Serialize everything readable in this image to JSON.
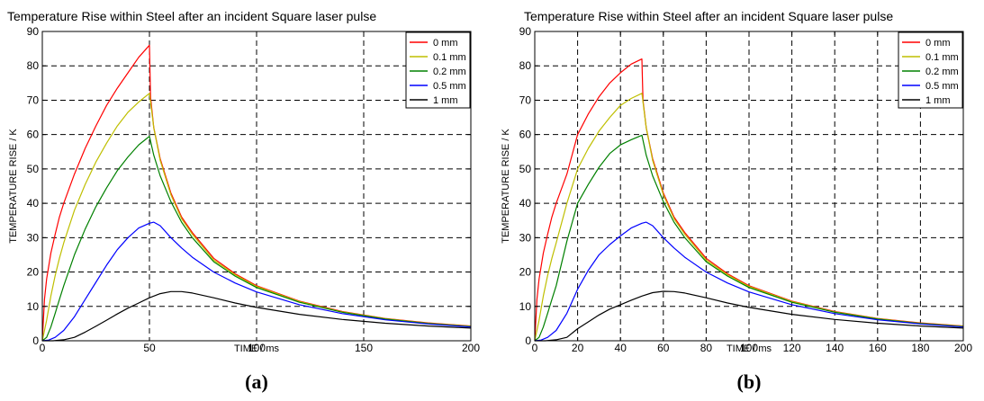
{
  "chart_data": [
    {
      "type": "line",
      "panel_label": "(a)",
      "title": "Temperature Rise within Steel after an incident Square  laser pulse",
      "xlabel": "TIME / ms",
      "ylabel": "TEMPERATURE RISE / K",
      "xlim": [
        0,
        200
      ],
      "ylim": [
        0,
        90
      ],
      "xticks": [
        0,
        50,
        100,
        150,
        200
      ],
      "yticks": [
        0,
        10,
        20,
        30,
        40,
        50,
        60,
        70,
        80,
        90
      ],
      "grid": true,
      "legend_position": "top-right",
      "series": [
        {
          "name": "0 mm",
          "color": "#ff0000",
          "x": [
            0,
            1,
            2,
            4,
            6,
            8,
            10,
            15,
            20,
            25,
            30,
            35,
            40,
            45,
            50,
            50.5,
            52,
            55,
            60,
            65,
            70,
            80,
            90,
            100,
            120,
            140,
            160,
            180,
            200
          ],
          "y": [
            0,
            12,
            18,
            25.5,
            31,
            36,
            40,
            48.5,
            56,
            62.5,
            68.5,
            73.5,
            78,
            82.5,
            86,
            71,
            62,
            53,
            43,
            36,
            31.5,
            24,
            19.5,
            16,
            11.5,
            8.5,
            6.5,
            5.2,
            4.3
          ]
        },
        {
          "name": "0.1 mm",
          "color": "#bfbf00",
          "x": [
            0,
            2,
            4,
            6,
            8,
            10,
            15,
            20,
            25,
            30,
            35,
            40,
            45,
            50,
            52,
            55,
            60,
            65,
            70,
            80,
            90,
            100,
            120,
            140,
            160,
            180,
            200
          ],
          "y": [
            0,
            6,
            13,
            19,
            24,
            28.5,
            38,
            45.5,
            52,
            57.5,
            62.5,
            66.5,
            69.5,
            72,
            62,
            52.5,
            42.5,
            35.5,
            31,
            23.5,
            19.2,
            15.8,
            11.4,
            8.4,
            6.4,
            5.1,
            4.2
          ]
        },
        {
          "name": "0.2 mm",
          "color": "#008000",
          "x": [
            0,
            2,
            4,
            6,
            8,
            10,
            15,
            20,
            25,
            30,
            35,
            40,
            45,
            50,
            52,
            55,
            60,
            65,
            70,
            80,
            90,
            100,
            120,
            140,
            160,
            180,
            200
          ],
          "y": [
            0,
            1,
            4,
            8,
            12,
            16,
            25,
            32.5,
            39,
            44.5,
            49.5,
            53.5,
            57,
            59.5,
            54,
            48,
            40.5,
            34.5,
            30,
            23,
            18.8,
            15.5,
            11.2,
            8.3,
            6.3,
            5.0,
            4.1
          ]
        },
        {
          "name": "0.5 mm",
          "color": "#0000ff",
          "x": [
            0,
            3,
            6,
            10,
            15,
            20,
            25,
            30,
            35,
            40,
            45,
            50,
            52,
            55,
            60,
            65,
            70,
            80,
            90,
            100,
            120,
            140,
            160,
            180,
            200
          ],
          "y": [
            0,
            0.2,
            1,
            3,
            7,
            12,
            17,
            22,
            26.5,
            30,
            32.8,
            34.2,
            34.5,
            33.5,
            30,
            27,
            24.3,
            20,
            16.8,
            14.2,
            10.5,
            7.9,
            6.1,
            4.9,
            4.0
          ]
        },
        {
          "name": "1 mm",
          "color": "#000000",
          "x": [
            0,
            5,
            10,
            15,
            20,
            25,
            30,
            35,
            40,
            45,
            50,
            55,
            60,
            65,
            70,
            80,
            90,
            100,
            120,
            140,
            160,
            180,
            200
          ],
          "y": [
            0,
            0,
            0.3,
            1,
            2.5,
            4.2,
            6,
            7.8,
            9.5,
            11,
            12.5,
            13.7,
            14.3,
            14.3,
            13.9,
            12.5,
            11,
            9.7,
            7.7,
            6.2,
            5.1,
            4.3,
            3.7
          ]
        }
      ]
    },
    {
      "type": "line",
      "panel_label": "(b)",
      "title": "Temperature Rise within Steel after an incident Square laser pulse",
      "xlabel": "TIME / ms",
      "ylabel": "TEMPERATURE RISE / K",
      "xlim": [
        0,
        200
      ],
      "ylim": [
        0,
        90
      ],
      "xticks": [
        0,
        20,
        40,
        60,
        80,
        100,
        120,
        140,
        160,
        180,
        200
      ],
      "yticks": [
        0,
        10,
        20,
        30,
        40,
        50,
        60,
        70,
        80,
        90
      ],
      "grid": true,
      "legend_position": "top-right",
      "series": [
        {
          "name": "0 mm",
          "color": "#ff0000",
          "x": [
            0,
            1,
            2,
            4,
            6,
            8,
            10,
            15,
            20,
            25,
            30,
            35,
            40,
            45,
            50,
            50.5,
            52,
            55,
            60,
            65,
            70,
            80,
            90,
            100,
            120,
            140,
            160,
            180,
            200
          ],
          "y": [
            0,
            12,
            18,
            25.5,
            31,
            36,
            40,
            48.5,
            60,
            66,
            71,
            75,
            78,
            80.5,
            82,
            70,
            62,
            53,
            43,
            36,
            31.5,
            24,
            19.5,
            16,
            11.5,
            8.5,
            6.5,
            5.2,
            4.3
          ]
        },
        {
          "name": "0.1 mm",
          "color": "#bfbf00",
          "x": [
            0,
            2,
            4,
            6,
            8,
            10,
            15,
            20,
            25,
            30,
            35,
            40,
            45,
            50,
            52,
            55,
            60,
            65,
            70,
            80,
            90,
            100,
            120,
            140,
            160,
            180,
            200
          ],
          "y": [
            0,
            6,
            13,
            19,
            24,
            28.5,
            40,
            50,
            56,
            61,
            65,
            68.5,
            70.5,
            72,
            62,
            52.5,
            42.5,
            35.5,
            31,
            23.5,
            19.2,
            15.8,
            11.4,
            8.4,
            6.4,
            5.1,
            4.2
          ]
        },
        {
          "name": "0.2 mm",
          "color": "#008000",
          "x": [
            0,
            2,
            4,
            6,
            8,
            10,
            15,
            20,
            25,
            30,
            35,
            40,
            45,
            50,
            52,
            55,
            60,
            65,
            70,
            80,
            90,
            100,
            120,
            140,
            160,
            180,
            200
          ],
          "y": [
            0,
            1,
            4,
            8,
            12,
            16,
            29,
            40,
            45.5,
            50.5,
            54.5,
            57,
            58.5,
            59.8,
            54,
            48,
            40.5,
            34.5,
            30,
            23,
            18.8,
            15.5,
            11.2,
            8.3,
            6.3,
            5.0,
            4.1
          ]
        },
        {
          "name": "0.5 mm",
          "color": "#0000ff",
          "x": [
            0,
            3,
            6,
            10,
            15,
            20,
            25,
            30,
            35,
            40,
            45,
            50,
            52,
            55,
            60,
            65,
            70,
            80,
            90,
            100,
            120,
            140,
            160,
            180,
            200
          ],
          "y": [
            0,
            0.2,
            1,
            3,
            8,
            15,
            20.5,
            25,
            28,
            30.5,
            32.8,
            34.2,
            34.5,
            33.5,
            30,
            27,
            24.3,
            20,
            16.8,
            14.2,
            10.5,
            7.9,
            6.1,
            4.9,
            4.0
          ]
        },
        {
          "name": "1 mm",
          "color": "#000000",
          "x": [
            0,
            5,
            10,
            15,
            20,
            25,
            30,
            35,
            40,
            45,
            50,
            55,
            60,
            65,
            70,
            80,
            90,
            100,
            120,
            140,
            160,
            180,
            200
          ],
          "y": [
            0,
            0,
            0.3,
            1,
            3.5,
            5.5,
            7.5,
            9.2,
            10.5,
            11.8,
            13,
            14,
            14.4,
            14.3,
            13.9,
            12.5,
            11,
            9.7,
            7.7,
            6.2,
            5.1,
            4.3,
            3.7
          ]
        }
      ]
    }
  ]
}
